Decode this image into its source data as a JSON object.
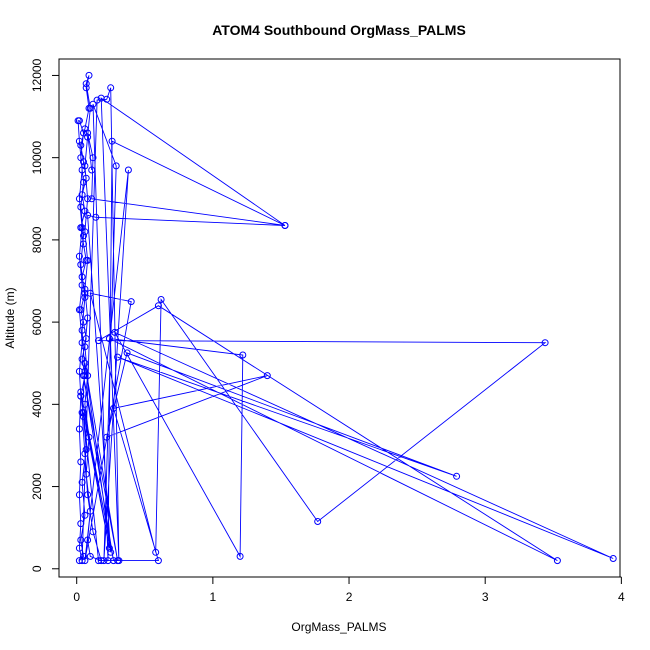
{
  "chart_data": {
    "type": "line",
    "title": "ATOM4 Southbound OrgMass_PALMS",
    "xlabel": "OrgMass_PALMS",
    "ylabel": "Altitude (m)",
    "xlim": [
      -0.13,
      3.99
    ],
    "ylim": [
      -200,
      12400
    ],
    "x_ticks": [
      0,
      1,
      2,
      3,
      4
    ],
    "y_ticks": [
      0,
      2000,
      4000,
      6000,
      8000,
      10000,
      12000
    ],
    "grid": false,
    "legend": "none",
    "series_color": "#0000ff",
    "markers": "open-circle",
    "series": [
      {
        "points": [
          [
            0.02,
            200
          ],
          [
            0.05,
            300
          ],
          [
            0.03,
            700
          ],
          [
            0.06,
            1300
          ],
          [
            0.04,
            2100
          ],
          [
            0.07,
            2900
          ],
          [
            0.05,
            3700
          ],
          [
            0.03,
            4200
          ],
          [
            0.06,
            4700
          ],
          [
            0.04,
            5100
          ],
          [
            0.07,
            5600
          ],
          [
            0.05,
            6000
          ],
          [
            0.03,
            6300
          ],
          [
            0.06,
            6700
          ],
          [
            0.04,
            7100
          ],
          [
            0.07,
            7500
          ],
          [
            0.05,
            7900
          ],
          [
            0.03,
            8300
          ],
          [
            0.06,
            8700
          ],
          [
            0.04,
            9100
          ],
          [
            0.07,
            9500
          ],
          [
            0.05,
            9900
          ],
          [
            0.03,
            10300
          ],
          [
            0.06,
            10700
          ],
          [
            0.09,
            11200
          ],
          [
            0.07,
            11700
          ],
          [
            0.09,
            12000
          ],
          [
            0.07,
            11800
          ],
          [
            0.1,
            11200
          ],
          [
            0.08,
            10500
          ],
          [
            0.06,
            9800
          ],
          [
            0.08,
            9000
          ],
          [
            0.06,
            8200
          ],
          [
            0.08,
            7500
          ],
          [
            0.06,
            6800
          ],
          [
            0.08,
            6100
          ],
          [
            0.06,
            5400
          ],
          [
            0.08,
            4700
          ],
          [
            0.06,
            4000
          ],
          [
            0.09,
            3200
          ],
          [
            0.07,
            2300
          ],
          [
            0.1,
            1400
          ],
          [
            0.08,
            700
          ],
          [
            0.1,
            300
          ],
          [
            0.18,
            200
          ],
          [
            0.12,
            900
          ],
          [
            0.08,
            1800
          ],
          [
            0.06,
            2800
          ],
          [
            0.04,
            3800
          ],
          [
            0.06,
            4800
          ],
          [
            0.04,
            5800
          ],
          [
            0.06,
            6600
          ],
          [
            0.03,
            7400
          ],
          [
            0.05,
            8100
          ],
          [
            0.03,
            8800
          ],
          [
            0.05,
            9400
          ],
          [
            0.03,
            10000
          ],
          [
            0.05,
            10600
          ],
          [
            0.02,
            10900
          ],
          [
            0.01,
            10900
          ],
          [
            0.02,
            10400
          ],
          [
            0.04,
            9700
          ],
          [
            0.02,
            9000
          ],
          [
            0.04,
            8300
          ],
          [
            0.02,
            7600
          ],
          [
            0.04,
            6900
          ],
          [
            0.02,
            6300
          ],
          [
            0.04,
            5500
          ],
          [
            0.02,
            4800
          ],
          [
            0.03,
            4200
          ],
          [
            0.02,
            3400
          ],
          [
            0.03,
            2600
          ],
          [
            0.02,
            1800
          ],
          [
            0.03,
            1100
          ],
          [
            0.02,
            500
          ],
          [
            0.04,
            200
          ],
          [
            0.15,
            11400
          ],
          [
            0.22,
            11420
          ],
          [
            0.25,
            11700
          ],
          [
            0.31,
            200
          ],
          [
            0.18,
            11450
          ],
          [
            1.53,
            8350
          ],
          [
            0.26,
            10400
          ],
          [
            0.23,
            200
          ],
          [
            0.12,
            11300
          ],
          [
            0.29,
            9800
          ],
          [
            0.2,
            200
          ],
          [
            0.38,
            9700
          ],
          [
            0.06,
            200
          ],
          [
            0.4,
            6500
          ],
          [
            0.1,
            6700
          ],
          [
            0.58,
            400
          ],
          [
            0.62,
            6550
          ],
          [
            1.77,
            1150
          ],
          [
            3.44,
            5500
          ],
          [
            0.16,
            5550
          ],
          [
            0.6,
            6400
          ],
          [
            3.53,
            200
          ],
          [
            0.24,
            5600
          ],
          [
            1.22,
            5200
          ],
          [
            1.2,
            300
          ],
          [
            0.28,
            5750
          ],
          [
            3.94,
            250
          ],
          [
            0.3,
            5150
          ],
          [
            2.79,
            2250
          ],
          [
            0.37,
            5250
          ],
          [
            0.22,
            3200
          ],
          [
            1.4,
            4700
          ],
          [
            0.27,
            3900
          ],
          [
            0.6,
            200
          ],
          [
            0.16,
            200
          ],
          [
            0.05,
            3800
          ],
          [
            0.24,
            500
          ],
          [
            0.03,
            4300
          ],
          [
            0.27,
            200
          ],
          [
            0.05,
            4700
          ],
          [
            0.3,
            200
          ],
          [
            0.06,
            5000
          ],
          [
            0.25,
            400
          ],
          [
            0.08,
            8600
          ],
          [
            0.14,
            8550
          ],
          [
            1.53,
            8350
          ],
          [
            0.11,
            9000
          ],
          [
            0.12,
            10000
          ],
          [
            0.08,
            10600
          ],
          [
            0.11,
            9700
          ]
        ]
      }
    ]
  }
}
